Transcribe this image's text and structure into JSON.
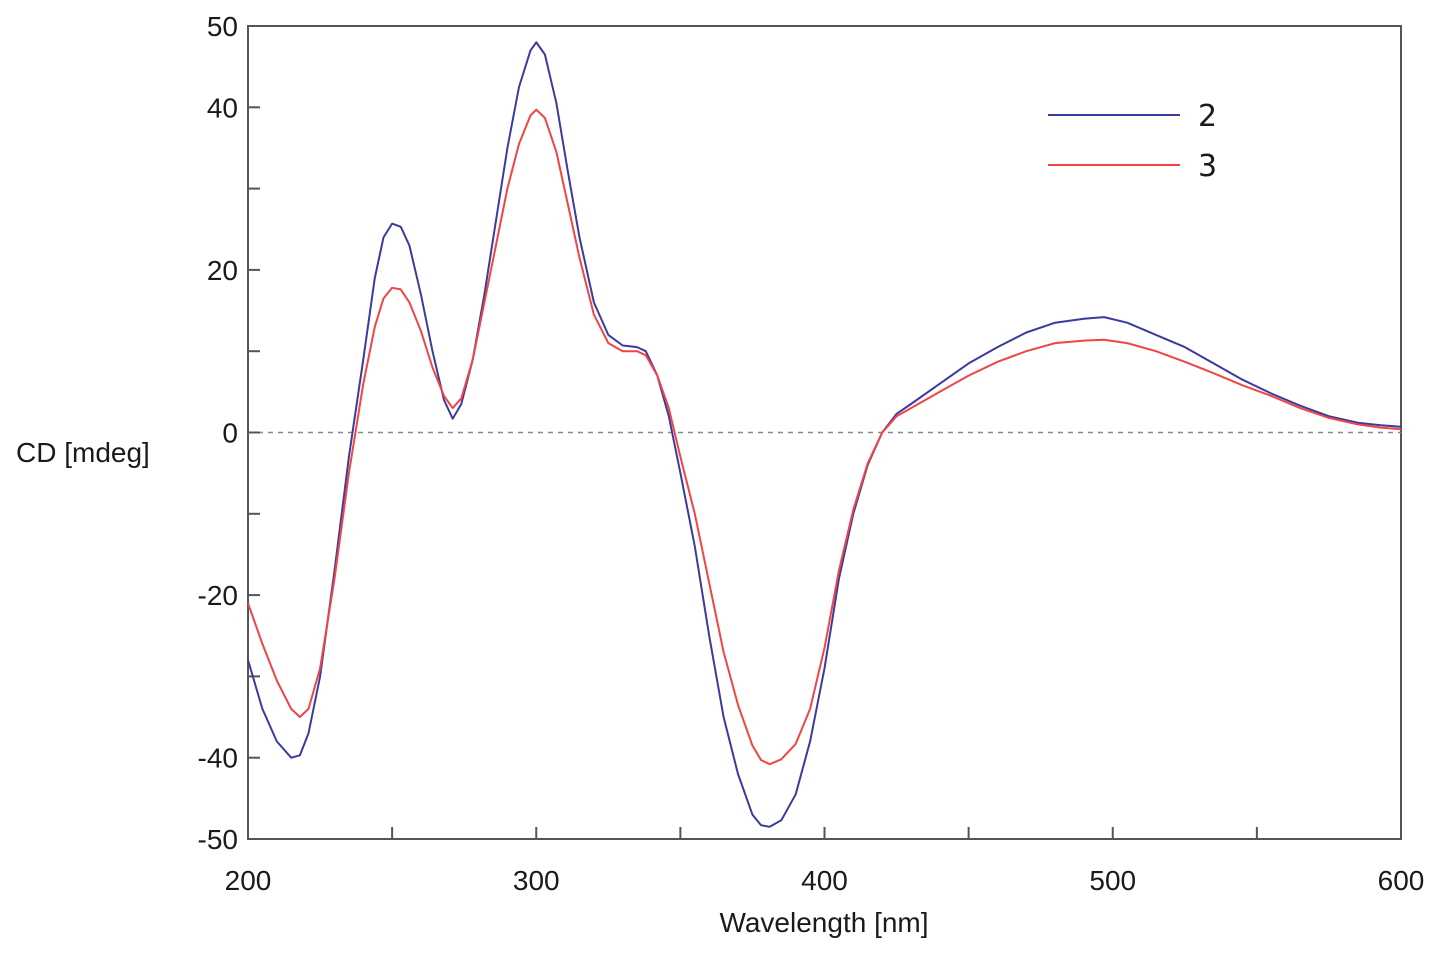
{
  "chart_data": {
    "type": "line",
    "title": "",
    "xlabel": "Wavelength [nm]",
    "ylabel": "CD [mdeg]",
    "xlim": [
      200,
      600
    ],
    "ylim": [
      -50,
      50
    ],
    "x_ticks": [
      200,
      300,
      400,
      500,
      600
    ],
    "x_tick_labels": [
      "200",
      "300",
      "400",
      "500",
      "600"
    ],
    "x_minor_ticks": [
      250,
      350,
      450,
      550
    ],
    "y_ticks": [
      -50,
      -40,
      -20,
      0,
      20,
      40,
      50
    ],
    "y_tick_labels": [
      "-50",
      "-40",
      "-20",
      "0",
      "20",
      "40",
      "50"
    ],
    "y_minor_ticks": [
      -30,
      -10,
      10,
      30
    ],
    "zero_line": true,
    "grid": false,
    "legend_position": "top-right",
    "series": [
      {
        "name": "2",
        "color": "#3b3b9e",
        "points": [
          [
            200,
            -28
          ],
          [
            205,
            -34
          ],
          [
            210,
            -38
          ],
          [
            215,
            -40
          ],
          [
            218,
            -39.7
          ],
          [
            221,
            -37
          ],
          [
            225,
            -30
          ],
          [
            230,
            -17
          ],
          [
            235,
            -3
          ],
          [
            240,
            9
          ],
          [
            244,
            19
          ],
          [
            247,
            24
          ],
          [
            250,
            25.7
          ],
          [
            253,
            25.3
          ],
          [
            256,
            23
          ],
          [
            260,
            17
          ],
          [
            264,
            10
          ],
          [
            268,
            4
          ],
          [
            271,
            1.7
          ],
          [
            274,
            3.5
          ],
          [
            278,
            9
          ],
          [
            282,
            17
          ],
          [
            286,
            26
          ],
          [
            290,
            35
          ],
          [
            294,
            42.5
          ],
          [
            298,
            47
          ],
          [
            300,
            48
          ],
          [
            303,
            46.5
          ],
          [
            307,
            40.5
          ],
          [
            311,
            32
          ],
          [
            315,
            24
          ],
          [
            320,
            16
          ],
          [
            325,
            12
          ],
          [
            330,
            10.7
          ],
          [
            335,
            10.5
          ],
          [
            338,
            10
          ],
          [
            342,
            7
          ],
          [
            346,
            2
          ],
          [
            350,
            -5
          ],
          [
            355,
            -14
          ],
          [
            360,
            -25
          ],
          [
            365,
            -35
          ],
          [
            370,
            -42
          ],
          [
            375,
            -47
          ],
          [
            378,
            -48.3
          ],
          [
            381,
            -48.5
          ],
          [
            385,
            -47.7
          ],
          [
            390,
            -44.5
          ],
          [
            395,
            -38
          ],
          [
            400,
            -29
          ],
          [
            405,
            -18
          ],
          [
            410,
            -10
          ],
          [
            415,
            -4
          ],
          [
            420,
            0
          ],
          [
            425,
            2.3
          ],
          [
            430,
            3.5
          ],
          [
            440,
            6
          ],
          [
            450,
            8.5
          ],
          [
            460,
            10.5
          ],
          [
            470,
            12.3
          ],
          [
            480,
            13.5
          ],
          [
            490,
            14
          ],
          [
            497,
            14.2
          ],
          [
            505,
            13.5
          ],
          [
            515,
            12
          ],
          [
            525,
            10.5
          ],
          [
            535,
            8.5
          ],
          [
            545,
            6.5
          ],
          [
            555,
            4.8
          ],
          [
            565,
            3.3
          ],
          [
            575,
            2
          ],
          [
            585,
            1.2
          ],
          [
            593,
            0.9
          ],
          [
            600,
            0.7
          ]
        ]
      },
      {
        "name": "3",
        "color": "#f04545",
        "points": [
          [
            200,
            -21
          ],
          [
            205,
            -26
          ],
          [
            210,
            -30.5
          ],
          [
            215,
            -34
          ],
          [
            218,
            -35
          ],
          [
            221,
            -34
          ],
          [
            225,
            -29
          ],
          [
            230,
            -18
          ],
          [
            235,
            -5
          ],
          [
            240,
            6
          ],
          [
            244,
            13
          ],
          [
            247,
            16.5
          ],
          [
            250,
            17.8
          ],
          [
            253,
            17.6
          ],
          [
            256,
            16
          ],
          [
            260,
            12.5
          ],
          [
            264,
            8
          ],
          [
            268,
            4.5
          ],
          [
            271,
            3
          ],
          [
            274,
            4.2
          ],
          [
            278,
            9
          ],
          [
            282,
            16
          ],
          [
            286,
            23
          ],
          [
            290,
            30
          ],
          [
            294,
            35.5
          ],
          [
            298,
            39
          ],
          [
            300,
            39.7
          ],
          [
            303,
            38.7
          ],
          [
            307,
            34.5
          ],
          [
            311,
            28
          ],
          [
            315,
            21.5
          ],
          [
            320,
            14.5
          ],
          [
            325,
            11
          ],
          [
            330,
            10
          ],
          [
            335,
            10
          ],
          [
            338,
            9.5
          ],
          [
            342,
            7
          ],
          [
            346,
            3
          ],
          [
            350,
            -3
          ],
          [
            355,
            -10
          ],
          [
            360,
            -18.5
          ],
          [
            365,
            -27
          ],
          [
            370,
            -33.5
          ],
          [
            375,
            -38.5
          ],
          [
            378,
            -40.3
          ],
          [
            381,
            -40.8
          ],
          [
            385,
            -40.2
          ],
          [
            390,
            -38.3
          ],
          [
            395,
            -34
          ],
          [
            400,
            -26.5
          ],
          [
            405,
            -17
          ],
          [
            410,
            -9.5
          ],
          [
            415,
            -3.8
          ],
          [
            420,
            0
          ],
          [
            425,
            2
          ],
          [
            430,
            3
          ],
          [
            440,
            5
          ],
          [
            450,
            7
          ],
          [
            460,
            8.7
          ],
          [
            470,
            10
          ],
          [
            480,
            11
          ],
          [
            490,
            11.3
          ],
          [
            497,
            11.4
          ],
          [
            505,
            11
          ],
          [
            515,
            10
          ],
          [
            525,
            8.7
          ],
          [
            535,
            7.3
          ],
          [
            545,
            5.8
          ],
          [
            555,
            4.5
          ],
          [
            565,
            3
          ],
          [
            575,
            1.8
          ],
          [
            585,
            1
          ],
          [
            593,
            0.6
          ],
          [
            600,
            0.4
          ]
        ]
      }
    ]
  }
}
